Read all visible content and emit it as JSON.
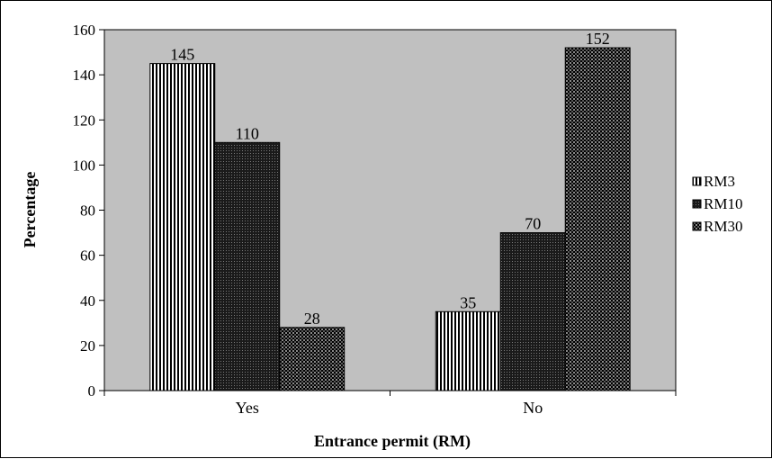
{
  "chart_data": {
    "type": "bar",
    "categories": [
      "Yes",
      "No"
    ],
    "series": [
      {
        "name": "RM3",
        "values": [
          145,
          35
        ],
        "pattern": "vertical-lines"
      },
      {
        "name": "RM10",
        "values": [
          110,
          70
        ],
        "pattern": "dense-dots"
      },
      {
        "name": "RM30",
        "values": [
          28,
          152
        ],
        "pattern": "checker"
      }
    ],
    "xlabel": "Entrance permit (RM)",
    "ylabel": "Percentage",
    "ylim": [
      0,
      160
    ],
    "yticks": [
      0,
      20,
      40,
      60,
      80,
      100,
      120,
      140,
      160
    ],
    "data_labels": true,
    "plot_background": "#c0c0c0",
    "grid": false,
    "legend_position": "right"
  }
}
